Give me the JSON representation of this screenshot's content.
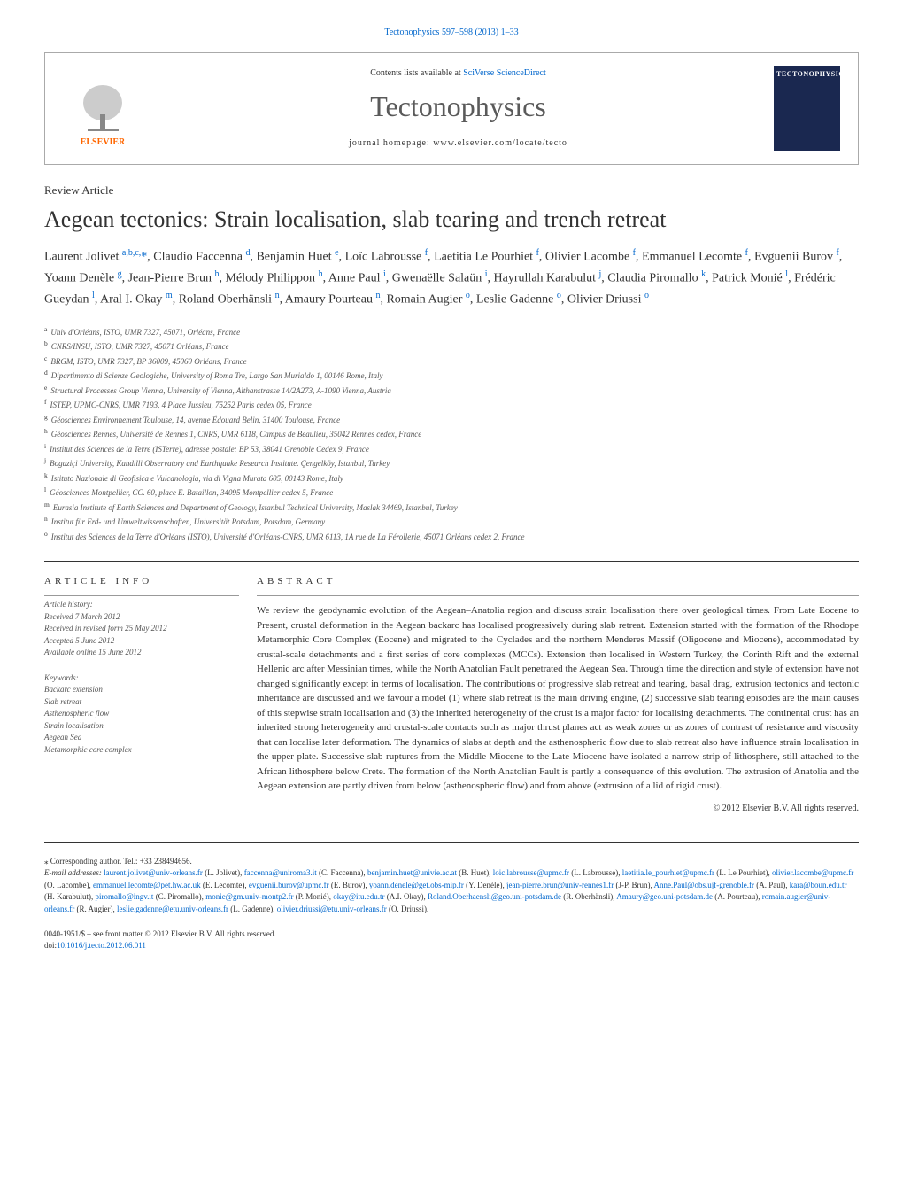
{
  "journal_ref": "Tectonophysics 597–598 (2013) 1–33",
  "header": {
    "contents_prefix": "Contents lists available at ",
    "contents_link": "SciVerse ScienceDirect",
    "journal_name": "Tectonophysics",
    "homepage": "journal homepage: www.elsevier.com/locate/tecto",
    "publisher": "ELSEVIER",
    "cover_title": "TECTONOPHYSICS"
  },
  "article_type": "Review Article",
  "title": "Aegean tectonics: Strain localisation, slab tearing and trench retreat",
  "authors_html": "Laurent Jolivet <sup>a,b,c,</sup><a>*</a>, Claudio Faccenna <sup>d</sup>, Benjamin Huet <sup>e</sup>, Loïc Labrousse <sup>f</sup>, Laetitia Le Pourhiet <sup>f</sup>, Olivier Lacombe <sup>f</sup>, Emmanuel Lecomte <sup>f</sup>, Evguenii Burov <sup>f</sup>, Yoann Denèle <sup>g</sup>, Jean-Pierre Brun <sup>h</sup>, Mélody Philippon <sup>h</sup>, Anne Paul <sup>i</sup>, Gwenaëlle Salaün <sup>i</sup>, Hayrullah Karabulut <sup>j</sup>, Claudia Piromallo <sup>k</sup>, Patrick Monié <sup>l</sup>, Frédéric Gueydan <sup>l</sup>, Aral I. Okay <sup>m</sup>, Roland Oberhänsli <sup>n</sup>, Amaury Pourteau <sup>n</sup>, Romain Augier <sup>o</sup>, Leslie Gadenne <sup>o</sup>, Olivier Driussi <sup>o</sup>",
  "affiliations": [
    {
      "sup": "a",
      "text": "Univ d'Orléans, ISTO, UMR 7327, 45071, Orléans, France"
    },
    {
      "sup": "b",
      "text": "CNRS/INSU, ISTO, UMR 7327, 45071 Orléans, France"
    },
    {
      "sup": "c",
      "text": "BRGM, ISTO, UMR 7327, BP 36009, 45060 Orléans, France"
    },
    {
      "sup": "d",
      "text": "Dipartimento di Scienze Geologiche, University of Roma Tre, Largo San Murialdo 1, 00146 Rome, Italy"
    },
    {
      "sup": "e",
      "text": "Structural Processes Group Vienna, University of Vienna, Althanstrasse 14/2A273, A-1090 Vienna, Austria"
    },
    {
      "sup": "f",
      "text": "ISTEP, UPMC-CNRS, UMR 7193, 4 Place Jussieu, 75252 Paris cedex 05, France"
    },
    {
      "sup": "g",
      "text": "Géosciences Environnement Toulouse, 14, avenue Édouard Belin, 31400 Toulouse, France"
    },
    {
      "sup": "h",
      "text": "Géosciences Rennes, Université de Rennes 1, CNRS, UMR 6118, Campus de Beaulieu, 35042 Rennes cedex, France"
    },
    {
      "sup": "i",
      "text": "Institut des Sciences de la Terre (ISTerre), adresse postale: BP 53, 38041 Grenoble Cedex 9, France"
    },
    {
      "sup": "j",
      "text": "Bogaziçi University, Kandilli Observatory and Earthquake Research Institute. Çengelköy, Istanbul, Turkey"
    },
    {
      "sup": "k",
      "text": "Istituto Nazionale di Geofisica e Vulcanologia, via di Vigna Murata 605, 00143 Rome, Italy"
    },
    {
      "sup": "l",
      "text": "Géosciences Montpellier, CC. 60, place E. Bataillon, 34095 Montpellier cedex 5, France"
    },
    {
      "sup": "m",
      "text": "Eurasia Institute of Earth Sciences and Department of Geology, Istanbul Technical University, Maslak 34469, Istanbul, Turkey"
    },
    {
      "sup": "n",
      "text": "Institut für Erd- und Umweltwissenschaften, Universität Potsdam, Potsdam, Germany"
    },
    {
      "sup": "o",
      "text": "Institut des Sciences de la Terre d'Orléans (ISTO), Université d'Orléans-CNRS, UMR 6113, 1A rue de La Férollerie, 45071 Orléans cedex 2, France"
    }
  ],
  "info": {
    "heading_info": "ARTICLE INFO",
    "heading_abstract": "ABSTRACT",
    "history_label": "Article history:",
    "history": [
      "Received 7 March 2012",
      "Received in revised form 25 May 2012",
      "Accepted 5 June 2012",
      "Available online 15 June 2012"
    ],
    "keywords_label": "Keywords:",
    "keywords": [
      "Backarc extension",
      "Slab retreat",
      "Asthenospheric flow",
      "Strain localisation",
      "Aegean Sea",
      "Metamorphic core complex"
    ]
  },
  "abstract": "We review the geodynamic evolution of the Aegean–Anatolia region and discuss strain localisation there over geological times. From Late Eocene to Present, crustal deformation in the Aegean backarc has localised progressively during slab retreat. Extension started with the formation of the Rhodope Metamorphic Core Complex (Eocene) and migrated to the Cyclades and the northern Menderes Massif (Oligocene and Miocene), accommodated by crustal-scale detachments and a first series of core complexes (MCCs). Extension then localised in Western Turkey, the Corinth Rift and the external Hellenic arc after Messinian times, while the North Anatolian Fault penetrated the Aegean Sea. Through time the direction and style of extension have not changed significantly except in terms of localisation. The contributions of progressive slab retreat and tearing, basal drag, extrusion tectonics and tectonic inheritance are discussed and we favour a model (1) where slab retreat is the main driving engine, (2) successive slab tearing episodes are the main causes of this stepwise strain localisation and (3) the inherited heterogeneity of the crust is a major factor for localising detachments. The continental crust has an inherited strong heterogeneity and crustal-scale contacts such as major thrust planes act as weak zones or as zones of contrast of resistance and viscosity that can localise later deformation. The dynamics of slabs at depth and the asthenospheric flow due to slab retreat also have influence strain localisation in the upper plate. Successive slab ruptures from the Middle Miocene to the Late Miocene have isolated a narrow strip of lithosphere, still attached to the African lithosphere below Crete. The formation of the North Anatolian Fault is partly a consequence of this evolution. The extrusion of Anatolia and the Aegean extension are partly driven from below (asthenospheric flow) and from above (extrusion of a lid of rigid crust).",
  "copyright": "© 2012 Elsevier B.V. All rights reserved.",
  "corresponding": "⁎ Corresponding author. Tel.: +33 238494656.",
  "emails_label": "E-mail addresses: ",
  "emails": "laurent.jolivet@univ-orleans.fr (L. Jolivet), faccenna@uniroma3.it (C. Faccenna), benjamin.huet@univie.ac.at (B. Huet), loic.labrousse@upmc.fr (L. Labrousse), laetitia.le_pourhiet@upmc.fr (L. Le Pourhiet), olivier.lacombe@upmc.fr (O. Lacombe), emmanuel.lecomte@pet.hw.ac.uk (E. Lecomte), evguenii.burov@upmc.fr (E. Burov), yoann.denele@get.obs-mip.fr (Y. Denèle), jean-pierre.brun@univ-rennes1.fr (J-P. Brun), Anne.Paul@obs.ujf-grenoble.fr (A. Paul), kara@boun.edu.tr (H. Karabulut), piromallo@ingv.it (C. Piromallo), monie@gm.univ-montp2.fr (P. Monié), okay@itu.edu.tr (A.I. Okay), Roland.Oberhaensli@geo.uni-potsdam.de (R. Oberhänsli), Amaury@geo.uni-potsdam.de (A. Pourteau), romain.augier@univ-orleans.fr (R. Augier), leslie.gadenne@etu.univ-orleans.fr (L. Gadenne), olivier.driussi@etu.univ-orleans.fr (O. Driussi).",
  "footer": {
    "issn": "0040-1951/$ – see front matter © 2012 Elsevier B.V. All rights reserved.",
    "doi_label": "doi:",
    "doi": "10.1016/j.tecto.2012.06.011"
  }
}
